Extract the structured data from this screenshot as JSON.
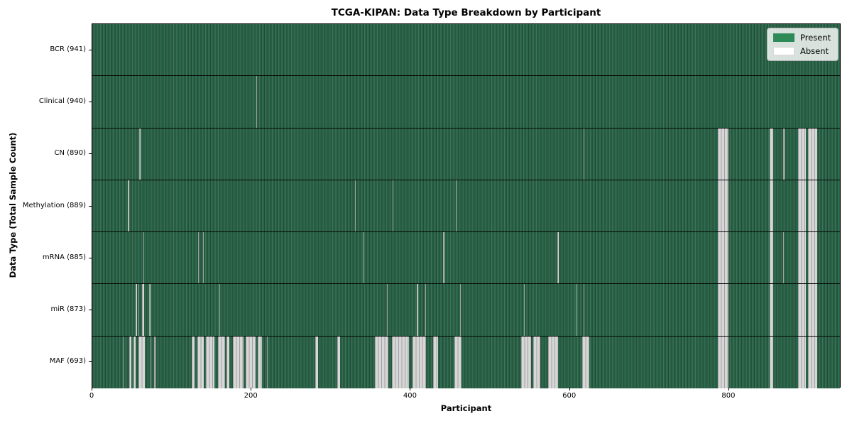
{
  "title": "TCGA-KIPAN: Data Type Breakdown by Participant",
  "axes": {
    "xlabel": "Participant",
    "ylabel": "Data Type (Total Sample Count)"
  },
  "legend": {
    "present_label": "Present",
    "absent_label": "Absent",
    "present_color": "#2e8b57",
    "absent_color": "#ffffff"
  },
  "chart_data": {
    "type": "heatmap",
    "title": "TCGA-KIPAN: Data Type Breakdown by Participant",
    "xlabel": "Participant",
    "ylabel": "Data Type (Total Sample Count)",
    "x_range": [
      0,
      941
    ],
    "x_ticks": [
      0,
      200,
      400,
      600,
      800
    ],
    "value_legend": {
      "present": "green",
      "absent": "white"
    },
    "colors": {
      "present": "#2e8b57",
      "absent": "#ffffff"
    },
    "rows": [
      {
        "label": "BCR (941)",
        "data_type": "BCR",
        "sample_count": 941,
        "absent_ranges": []
      },
      {
        "label": "Clinical (940)",
        "data_type": "Clinical",
        "sample_count": 940,
        "absent_ranges": [
          [
            206,
            207
          ]
        ]
      },
      {
        "label": "CN (890)",
        "data_type": "CN",
        "sample_count": 890,
        "absent_ranges": [
          [
            59,
            61
          ],
          [
            617,
            618
          ],
          [
            786,
            799
          ],
          [
            851,
            855
          ],
          [
            868,
            870
          ],
          [
            887,
            896
          ],
          [
            899,
            911
          ]
        ]
      },
      {
        "label": "Methylation (889)",
        "data_type": "Methylation",
        "sample_count": 889,
        "absent_ranges": [
          [
            45,
            46
          ],
          [
            330,
            331
          ],
          [
            377,
            378
          ],
          [
            457,
            458
          ],
          [
            786,
            799
          ],
          [
            851,
            855
          ],
          [
            887,
            896
          ],
          [
            899,
            911
          ]
        ]
      },
      {
        "label": "mRNA (885)",
        "data_type": "mRNA",
        "sample_count": 885,
        "absent_ranges": [
          [
            64,
            65
          ],
          [
            133,
            134
          ],
          [
            139,
            140
          ],
          [
            340,
            341
          ],
          [
            441,
            442
          ],
          [
            584,
            586
          ],
          [
            786,
            799
          ],
          [
            851,
            855
          ],
          [
            868,
            869
          ],
          [
            887,
            896
          ],
          [
            899,
            911
          ]
        ]
      },
      {
        "label": "miR (873)",
        "data_type": "miR",
        "sample_count": 873,
        "absent_ranges": [
          [
            54,
            56
          ],
          [
            58,
            59
          ],
          [
            62,
            65
          ],
          [
            71,
            73
          ],
          [
            160,
            161
          ],
          [
            370,
            371
          ],
          [
            408,
            409
          ],
          [
            418,
            419
          ],
          [
            462,
            463
          ],
          [
            542,
            543
          ],
          [
            607,
            608
          ],
          [
            617,
            618
          ],
          [
            786,
            799
          ],
          [
            851,
            855
          ],
          [
            887,
            896
          ],
          [
            899,
            911
          ]
        ]
      },
      {
        "label": "MAF (693)",
        "data_type": "MAF",
        "sample_count": 693,
        "absent_ranges": [
          [
            39,
            40
          ],
          [
            46,
            49
          ],
          [
            52,
            54
          ],
          [
            58,
            66
          ],
          [
            73,
            74
          ],
          [
            78,
            79
          ],
          [
            125,
            128
          ],
          [
            132,
            140
          ],
          [
            143,
            153
          ],
          [
            158,
            167
          ],
          [
            169,
            172
          ],
          [
            177,
            190
          ],
          [
            193,
            205
          ],
          [
            208,
            213
          ],
          [
            219,
            220
          ],
          [
            280,
            284
          ],
          [
            308,
            311
          ],
          [
            355,
            372
          ],
          [
            376,
            398
          ],
          [
            402,
            419
          ],
          [
            428,
            434
          ],
          [
            455,
            464
          ],
          [
            539,
            551
          ],
          [
            554,
            563
          ],
          [
            573,
            585
          ],
          [
            615,
            624
          ],
          [
            786,
            799
          ],
          [
            851,
            855
          ],
          [
            887,
            896
          ],
          [
            899,
            911
          ]
        ]
      }
    ]
  }
}
